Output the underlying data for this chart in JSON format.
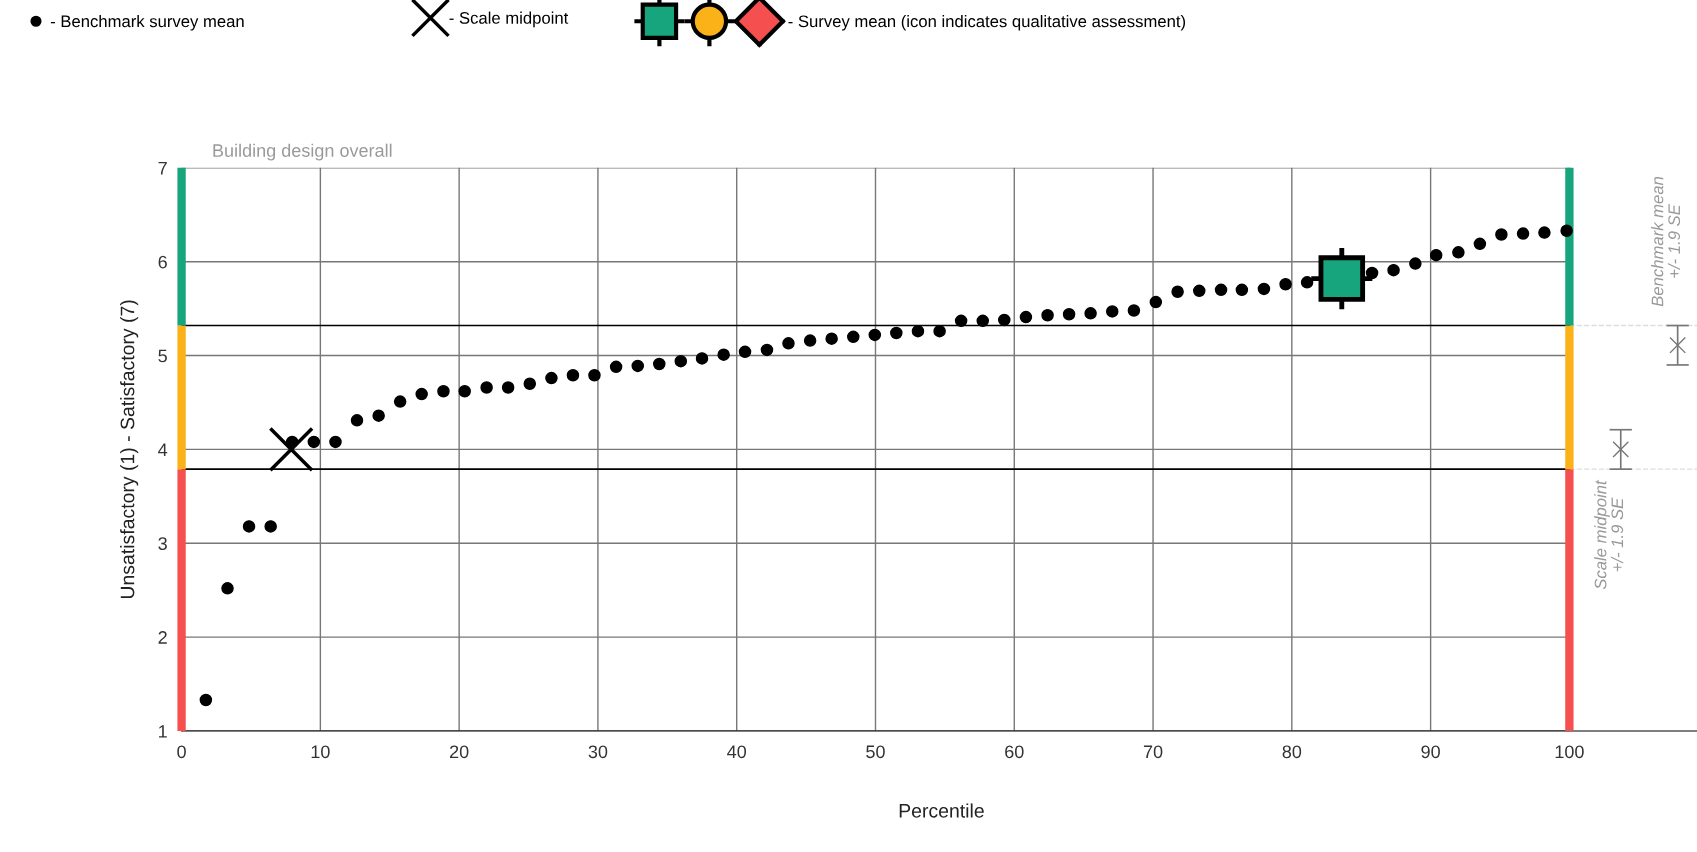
{
  "chart_data": {
    "type": "scatter",
    "title": "Building design overall",
    "xlabel": "Percentile",
    "ylabel": "Unsatisfactory (1) - Satisfactory (7)",
    "xlim": [
      0,
      109.5
    ],
    "ylim": [
      1,
      7
    ],
    "xticks": [
      0,
      10,
      20,
      30,
      40,
      50,
      60,
      70,
      80,
      90,
      100
    ],
    "yticks": [
      1,
      2,
      3,
      4,
      5,
      6,
      7
    ],
    "grid": true,
    "legend": "top",
    "ref_lines": [
      {
        "axis": "y",
        "value": 5.32,
        "color": "#000000"
      },
      {
        "axis": "y",
        "value": 3.79,
        "color": "#000000"
      }
    ],
    "annotations": [
      "Scale midpoint\n+/- 1.9 SE",
      "Benchmark mean\n+/- 1.9 SE"
    ],
    "series": [
      {
        "type": "bar",
        "x": [
          0,
          100
        ],
        "base": [
          1,
          1
        ],
        "values": [
          2.79,
          2.79
        ],
        "color": "#f64f4f"
      },
      {
        "type": "bar",
        "x": [
          0,
          100
        ],
        "base": [
          3.79,
          3.79
        ],
        "values": [
          1.53,
          1.53
        ],
        "color": "#fbb118"
      },
      {
        "type": "bar",
        "x": [
          0,
          100
        ],
        "base": [
          5.32,
          5.32
        ],
        "values": [
          1.68,
          1.68
        ],
        "color": "#17a57e"
      },
      {
        "name": "- Benchmark survey mean",
        "color": "#000000",
        "marker": "circle",
        "x": [
          1.75,
          3.31,
          4.86,
          6.42,
          7.97,
          9.53,
          11.09,
          12.64,
          14.2,
          15.75,
          17.3,
          18.87,
          20.4,
          21.98,
          23.53,
          25.09,
          26.65,
          28.2,
          29.75,
          31.31,
          32.87,
          34.42,
          35.97,
          37.5,
          39.06,
          40.6,
          42.18,
          43.73,
          45.29,
          46.84,
          48.4,
          49.95,
          51.5,
          53.06,
          54.62,
          56.17,
          57.73,
          59.28,
          60.84,
          62.4,
          63.95,
          65.5,
          67.06,
          68.62,
          70.2,
          71.77,
          73.33,
          74.9,
          76.4,
          77.99,
          79.55,
          81.1,
          82.67,
          84.2,
          85.78,
          87.33,
          88.9,
          90.4,
          92.0,
          93.55,
          95.1,
          96.66,
          98.2,
          99.8
        ],
        "values": [
          1.33,
          2.52,
          3.18,
          3.18,
          4.08,
          4.08,
          4.08,
          4.31,
          4.36,
          4.51,
          4.59,
          4.62,
          4.62,
          4.66,
          4.66,
          4.7,
          4.76,
          4.79,
          4.79,
          4.88,
          4.89,
          4.91,
          4.94,
          4.97,
          5.01,
          5.04,
          5.06,
          5.13,
          5.16,
          5.18,
          5.2,
          5.22,
          5.24,
          5.26,
          5.26,
          5.37,
          5.37,
          5.38,
          5.41,
          5.43,
          5.44,
          5.45,
          5.47,
          5.48,
          5.57,
          5.68,
          5.69,
          5.7,
          5.7,
          5.71,
          5.76,
          5.78,
          null,
          null,
          5.88,
          5.91,
          5.98,
          6.07,
          6.1,
          6.19,
          6.29,
          6.3,
          6.31,
          6.33
        ]
      },
      {
        "name": "- Scale midpoint",
        "color": "#000000",
        "marker": "cross",
        "x": [
          7.9
        ],
        "values": [
          4.0
        ]
      },
      {
        "color": "#777777",
        "marker": "cross",
        "x": [
          103.7,
          107.8
        ],
        "values": [
          4.0,
          5.11
        ],
        "errors": [
          0.21,
          0.21
        ]
      },
      {
        "name": "- Survey mean (icon indicates qualitative assessment)",
        "color": "#17a57e",
        "marker": "square",
        "x": [
          83.6
        ],
        "values": [
          5.82
        ]
      }
    ]
  }
}
